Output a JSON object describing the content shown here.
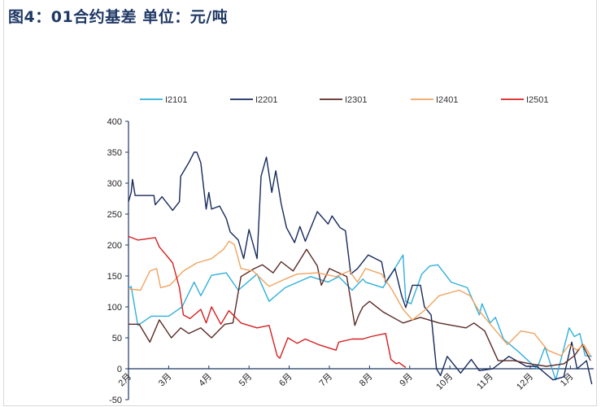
{
  "title": "图4：01合约基差   单位：元/吨",
  "chart_data": {
    "type": "line",
    "title": "图4：01合约基差   单位：元/吨",
    "xlabel": "",
    "ylabel": "",
    "ylim": [
      -50,
      400
    ],
    "yticks": [
      "400",
      "350",
      "300",
      "250",
      "200",
      "150",
      "100",
      "50",
      "0",
      "-50"
    ],
    "xticks": [
      "2月",
      "3月",
      "4月",
      "5月",
      "6月",
      "7月",
      "8月",
      "9月",
      "10月",
      "11月",
      "12月",
      "1月"
    ],
    "legend_position": "top",
    "grid": false,
    "series": [
      {
        "name": "I2101",
        "color": "#2fb0dc",
        "points": [
          [
            "02-01",
            130
          ],
          [
            "02-03",
            133
          ],
          [
            "02-08",
            70
          ],
          [
            "02-18",
            85
          ],
          [
            "03-01",
            85
          ],
          [
            "03-11",
            100
          ],
          [
            "03-20",
            140
          ],
          [
            "03-25",
            118
          ],
          [
            "04-03",
            151
          ],
          [
            "04-14",
            155
          ],
          [
            "04-23",
            127
          ],
          [
            "05-07",
            153
          ],
          [
            "05-16",
            109
          ],
          [
            "05-28",
            131
          ],
          [
            "06-17",
            149
          ],
          [
            "06-30",
            140
          ],
          [
            "07-08",
            149
          ],
          [
            "07-18",
            127
          ],
          [
            "07-26",
            145
          ],
          [
            "07-28",
            140
          ],
          [
            "08-11",
            131
          ],
          [
            "08-21",
            166
          ],
          [
            "08-26",
            184
          ],
          [
            "08-28",
            109
          ],
          [
            "09-02",
            105
          ],
          [
            "09-10",
            153
          ],
          [
            "09-16",
            166
          ],
          [
            "09-22",
            168
          ],
          [
            "10-02",
            140
          ],
          [
            "10-14",
            131
          ],
          [
            "10-23",
            87
          ],
          [
            "10-25",
            105
          ],
          [
            "11-01",
            74
          ],
          [
            "11-05",
            83
          ],
          [
            "11-11",
            48
          ],
          [
            "11-23",
            26
          ],
          [
            "12-06",
            0
          ],
          [
            "12-12",
            35
          ],
          [
            "12-20",
            -18
          ],
          [
            "12-30",
            66
          ],
          [
            "01-04",
            52
          ],
          [
            "01-08",
            57
          ],
          [
            "01-12",
            21
          ],
          [
            "01-17",
            20
          ]
        ]
      },
      {
        "name": "I2201",
        "color": "#172a5c",
        "points": [
          [
            "02-01",
            270
          ],
          [
            "02-03",
            285
          ],
          [
            "02-04",
            306
          ],
          [
            "02-06",
            280
          ],
          [
            "02-20",
            280
          ],
          [
            "02-21",
            265
          ],
          [
            "02-26",
            278
          ],
          [
            "03-04",
            256
          ],
          [
            "03-09",
            270
          ],
          [
            "03-10",
            311
          ],
          [
            "03-16",
            333
          ],
          [
            "03-20",
            350
          ],
          [
            "03-22",
            350
          ],
          [
            "03-25",
            333
          ],
          [
            "03-29",
            258
          ],
          [
            "04-01",
            285
          ],
          [
            "04-03",
            258
          ],
          [
            "04-09",
            263
          ],
          [
            "04-14",
            243
          ],
          [
            "04-17",
            221
          ],
          [
            "04-23",
            208
          ],
          [
            "04-27",
            178
          ],
          [
            "05-01",
            225
          ],
          [
            "05-07",
            178
          ],
          [
            "05-10",
            311
          ],
          [
            "05-14",
            342
          ],
          [
            "05-18",
            285
          ],
          [
            "05-21",
            320
          ],
          [
            "05-25",
            267
          ],
          [
            "05-29",
            228
          ],
          [
            "06-05",
            204
          ],
          [
            "06-09",
            230
          ],
          [
            "06-13",
            206
          ],
          [
            "06-22",
            254
          ],
          [
            "06-30",
            234
          ],
          [
            "07-03",
            247
          ],
          [
            "07-09",
            228
          ],
          [
            "07-13",
            223
          ],
          [
            "07-17",
            153
          ],
          [
            "07-22",
            162
          ],
          [
            "07-30",
            184
          ],
          [
            "08-10",
            173
          ],
          [
            "08-13",
            140
          ],
          [
            "08-20",
            162
          ],
          [
            "08-25",
            118
          ],
          [
            "08-28",
            99
          ],
          [
            "09-03",
            135
          ],
          [
            "09-09",
            135
          ],
          [
            "09-12",
            100
          ],
          [
            "09-17",
            87
          ],
          [
            "09-21",
            0
          ],
          [
            "09-24",
            -11
          ],
          [
            "09-29",
            20
          ],
          [
            "10-09",
            -7
          ],
          [
            "10-17",
            15
          ],
          [
            "10-23",
            -3
          ],
          [
            "11-03",
            0
          ],
          [
            "11-15",
            20
          ],
          [
            "11-28",
            4
          ],
          [
            "12-06",
            4
          ],
          [
            "12-18",
            -18
          ],
          [
            "12-26",
            -13
          ],
          [
            "01-02",
            43
          ],
          [
            "01-06",
            0
          ],
          [
            "01-13",
            13
          ],
          [
            "01-17",
            -25
          ]
        ]
      },
      {
        "name": "I2301",
        "color": "#5a2a26",
        "points": [
          [
            "02-01",
            72
          ],
          [
            "02-09",
            72
          ],
          [
            "02-12",
            61
          ],
          [
            "02-17",
            43
          ],
          [
            "02-24",
            79
          ],
          [
            "03-03",
            50
          ],
          [
            "03-10",
            66
          ],
          [
            "03-16",
            57
          ],
          [
            "03-25",
            66
          ],
          [
            "04-03",
            50
          ],
          [
            "04-13",
            72
          ],
          [
            "04-19",
            74
          ],
          [
            "04-25",
            149
          ],
          [
            "05-05",
            162
          ],
          [
            "05-11",
            168
          ],
          [
            "05-19",
            155
          ],
          [
            "05-25",
            173
          ],
          [
            "06-04",
            158
          ],
          [
            "06-14",
            193
          ],
          [
            "06-22",
            166
          ],
          [
            "06-25",
            135
          ],
          [
            "07-01",
            162
          ],
          [
            "07-14",
            149
          ],
          [
            "07-20",
            70
          ],
          [
            "07-23",
            87
          ],
          [
            "07-26",
            100
          ],
          [
            "08-01",
            109
          ],
          [
            "08-11",
            92
          ],
          [
            "08-26",
            74
          ],
          [
            "09-09",
            83
          ],
          [
            "09-23",
            74
          ],
          [
            "10-13",
            66
          ],
          [
            "10-19",
            74
          ],
          [
            "10-27",
            61
          ],
          [
            "11-07",
            13
          ],
          [
            "11-19",
            13
          ],
          [
            "12-01",
            8
          ],
          [
            "12-13",
            4
          ],
          [
            "12-26",
            8
          ],
          [
            "01-04",
            21
          ],
          [
            "01-10",
            39
          ],
          [
            "01-16",
            13
          ]
        ]
      },
      {
        "name": "I2401",
        "color": "#f0a460",
        "points": [
          [
            "02-01",
            129
          ],
          [
            "02-10",
            127
          ],
          [
            "02-17",
            158
          ],
          [
            "02-22",
            162
          ],
          [
            "02-25",
            131
          ],
          [
            "03-02",
            135
          ],
          [
            "03-12",
            158
          ],
          [
            "03-22",
            171
          ],
          [
            "04-03",
            178
          ],
          [
            "04-12",
            193
          ],
          [
            "04-16",
            206
          ],
          [
            "04-20",
            201
          ],
          [
            "04-25",
            162
          ],
          [
            "05-04",
            158
          ],
          [
            "05-16",
            133
          ],
          [
            "05-28",
            145
          ],
          [
            "06-07",
            153
          ],
          [
            "06-22",
            155
          ],
          [
            "07-06",
            149
          ],
          [
            "07-16",
            158
          ],
          [
            "07-22",
            140
          ],
          [
            "07-28",
            162
          ],
          [
            "08-10",
            153
          ],
          [
            "08-18",
            127
          ],
          [
            "08-26",
            96
          ],
          [
            "09-03",
            79
          ],
          [
            "09-13",
            96
          ],
          [
            "09-23",
            118
          ],
          [
            "10-08",
            127
          ],
          [
            "10-16",
            118
          ],
          [
            "10-22",
            96
          ],
          [
            "11-02",
            70
          ],
          [
            "11-14",
            39
          ],
          [
            "11-24",
            61
          ],
          [
            "12-04",
            57
          ],
          [
            "12-14",
            30
          ],
          [
            "12-24",
            21
          ],
          [
            "12-30",
            39
          ],
          [
            "01-06",
            30
          ],
          [
            "01-11",
            39
          ],
          [
            "01-16",
            21
          ]
        ]
      },
      {
        "name": "I2501",
        "color": "#d42020",
        "points": [
          [
            "02-01",
            214
          ],
          [
            "02-08",
            208
          ],
          [
            "02-21",
            212
          ],
          [
            "02-24",
            197
          ],
          [
            "03-01",
            179
          ],
          [
            "03-04",
            171
          ],
          [
            "03-09",
            131
          ],
          [
            "03-12",
            87
          ],
          [
            "03-17",
            81
          ],
          [
            "03-25",
            96
          ],
          [
            "03-29",
            74
          ],
          [
            "04-03",
            100
          ],
          [
            "04-10",
            72
          ],
          [
            "04-16",
            94
          ],
          [
            "04-25",
            74
          ],
          [
            "05-07",
            66
          ],
          [
            "05-16",
            70
          ],
          [
            "05-22",
            21
          ],
          [
            "05-24",
            17
          ],
          [
            "05-30",
            50
          ],
          [
            "06-07",
            41
          ],
          [
            "06-13",
            48
          ],
          [
            "06-23",
            39
          ],
          [
            "07-06",
            30
          ],
          [
            "07-08",
            43
          ],
          [
            "07-18",
            48
          ],
          [
            "07-26",
            48
          ],
          [
            "08-02",
            52
          ],
          [
            "08-13",
            57
          ],
          [
            "08-17",
            15
          ],
          [
            "08-21",
            8
          ],
          [
            "08-23",
            10
          ],
          [
            "08-28",
            2
          ]
        ]
      }
    ]
  }
}
